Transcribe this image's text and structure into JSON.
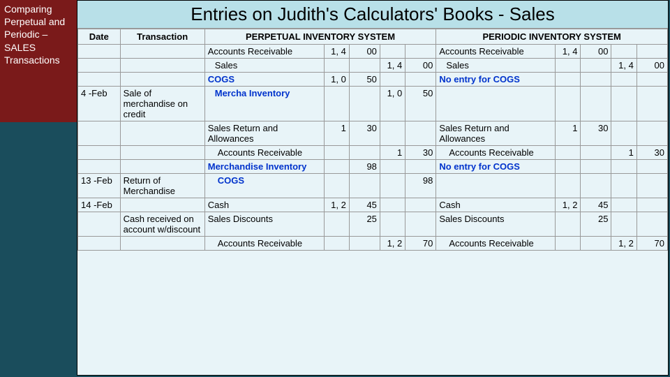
{
  "sidebar": {
    "text": "Comparing Perpetual and Periodic – SALES Transactions"
  },
  "title": "Entries on Judith's Calculators' Books - Sales",
  "headers": {
    "date": "Date",
    "transaction": "Transaction",
    "perpetual": "PERPETUAL INVENTORY SYSTEM",
    "periodic": "PERIODIC INVENTORY SYSTEM"
  },
  "rows": [
    {
      "date": "",
      "trans": "",
      "perpA": "Accounts Receivable",
      "perpD1": "1, 4",
      "perpD2": "00",
      "perpC1": "",
      "perpC2": "",
      "periA": "Accounts Receivable",
      "periD1": "1, 4",
      "periD2": "00",
      "periC1": "",
      "periC2": ""
    },
    {
      "date": "",
      "trans": "",
      "perpA": "Sales",
      "indent": "indent",
      "perpD1": "",
      "perpD2": "",
      "perpC1": "1, 4",
      "perpC2": "00",
      "periA": "Sales",
      "periIndent": "indent",
      "periD1": "",
      "periD2": "",
      "periC1": "1, 4",
      "periC2": "00"
    },
    {
      "date": "",
      "trans": "",
      "perpA": "COGS",
      "blue": true,
      "perpD1": "1, 0",
      "perpD2": "50",
      "perpC1": "",
      "perpC2": "",
      "periA": "No entry for COGS",
      "periBlue": true,
      "periD1": "",
      "periD2": "",
      "periC1": "",
      "periC2": ""
    },
    {
      "date": "4 -Feb",
      "trans": "Sale of merchandise on credit",
      "perpA": "Mercha Inventory",
      "blue": true,
      "indent": "indent",
      "perpD1": "",
      "perpD2": "",
      "perpC1": "1, 0",
      "perpC2": "50",
      "periA": "",
      "periD1": "",
      "periD2": "",
      "periC1": "",
      "periC2": ""
    },
    {
      "date": "",
      "trans": "",
      "perpA": "Sales Return and Allowances",
      "perpD1": "1",
      "perpD2": "30",
      "perpC1": "",
      "perpC2": "",
      "periA": "Sales Return and Allowances",
      "periD1": "1",
      "periD2": "30",
      "periC1": "",
      "periC2": ""
    },
    {
      "date": "",
      "trans": "",
      "perpA": "Accounts Receivable",
      "indent": "indent2",
      "perpD1": "",
      "perpD2": "",
      "perpC1": "1",
      "perpC2": "30",
      "periA": "Accounts Receivable",
      "periIndent": "indent2",
      "periD1": "",
      "periD2": "",
      "periC1": "1",
      "periC2": "30"
    },
    {
      "date": "",
      "trans": "",
      "perpA": "Merchandise Inventory",
      "blue": true,
      "perpD1": "",
      "perpD2": "98",
      "perpC1": "",
      "perpC2": "",
      "periA": "No entry for COGS",
      "periBlue": true,
      "periD1": "",
      "periD2": "",
      "periC1": "",
      "periC2": ""
    },
    {
      "date": "13 -Feb",
      "trans": "Return of Merchandise",
      "perpA": "COGS",
      "blue": true,
      "indent": "indent2",
      "perpD1": "",
      "perpD2": "",
      "perpC1": "",
      "perpC2": "98",
      "periA": "",
      "periD1": "",
      "periD2": "",
      "periC1": "",
      "periC2": ""
    },
    {
      "date": "14 -Feb",
      "trans": "",
      "perpA": "Cash",
      "perpD1": "1, 2",
      "perpD2": "45",
      "perpC1": "",
      "perpC2": "",
      "periA": "Cash",
      "periD1": "1, 2",
      "periD2": "45",
      "periC1": "",
      "periC2": ""
    },
    {
      "date": "",
      "trans": "Cash received on account w/discount",
      "perpA": "Sales Discounts",
      "perpD1": "",
      "perpD2": "25",
      "perpC1": "",
      "perpC2": "",
      "periA": "Sales Discounts",
      "periD1": "",
      "periD2": "25",
      "periC1": "",
      "periC2": ""
    },
    {
      "date": "",
      "trans": "",
      "perpA": "Accounts Receivable",
      "indent": "indent2",
      "perpD1": "",
      "perpD2": "",
      "perpC1": "1, 2",
      "perpC2": "70",
      "periA": "Accounts Receivable",
      "periIndent": "indent2",
      "periD1": "",
      "periD2": "",
      "periC1": "1, 2",
      "periC2": "70"
    }
  ]
}
